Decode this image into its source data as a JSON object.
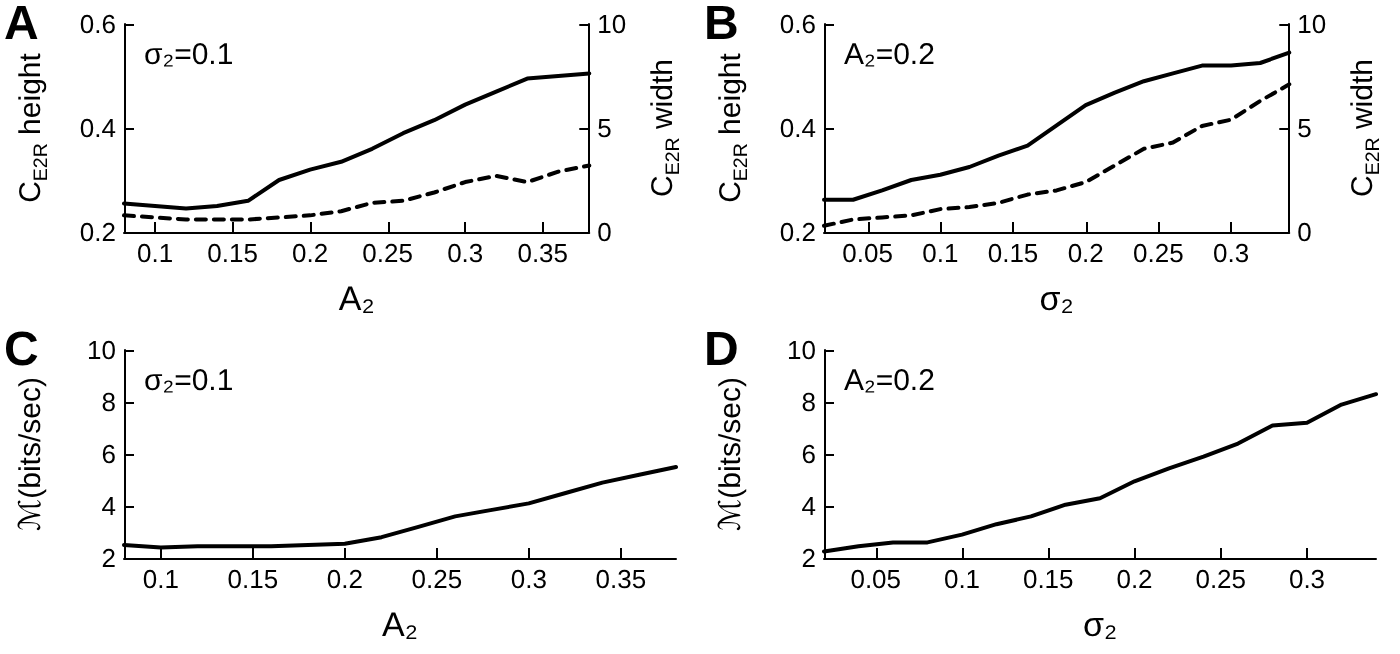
{
  "chart_data": [
    {
      "type": "line",
      "xlabel": "A₂",
      "ylabel": "C$_{E2R}$ height",
      "y2label": "C$_{E2R}$ width",
      "annotations": [
        "A",
        "σ₂=0.1"
      ],
      "x": [
        0.08,
        0.1,
        0.12,
        0.14,
        0.16,
        0.18,
        0.2,
        0.22,
        0.24,
        0.26,
        0.28,
        0.3,
        0.32,
        0.34,
        0.36,
        0.38
      ],
      "series": [
        {
          "color": "#000000",
          "line_style": "solid",
          "values": [
            0.255,
            0.25,
            0.245,
            0.25,
            0.26,
            0.3,
            0.32,
            0.335,
            0.36,
            0.39,
            0.415,
            0.445,
            0.47,
            0.495,
            0.5,
            0.505
          ]
        },
        {
          "color": "#000000",
          "line_style": "dashed",
          "axis": "y2",
          "values": [
            0.8,
            0.7,
            0.6,
            0.6,
            0.6,
            0.7,
            0.8,
            1.0,
            1.4,
            1.5,
            1.9,
            2.4,
            2.7,
            2.4,
            2.9,
            3.2
          ]
        }
      ],
      "xlim": [
        0.08,
        0.38
      ],
      "xticks": [
        0.1,
        0.15,
        0.2,
        0.25,
        0.3,
        0.35
      ],
      "ylim": [
        0.2,
        0.6
      ],
      "yticks": [
        0.2,
        0.4,
        0.6
      ],
      "y2lim": [
        0,
        10
      ],
      "y2ticks": [
        0,
        5,
        10
      ],
      "grid": false,
      "marker": "none"
    },
    {
      "type": "line",
      "xlabel": "σ₂",
      "ylabel": "C$_{E2R}$ height",
      "y2label": "C$_{E2R}$ width",
      "annotations": [
        "B",
        "A₂=0.2"
      ],
      "x": [
        0.02,
        0.04,
        0.06,
        0.08,
        0.1,
        0.12,
        0.14,
        0.16,
        0.18,
        0.2,
        0.22,
        0.24,
        0.26,
        0.28,
        0.3,
        0.32,
        0.34
      ],
      "series": [
        {
          "color": "#000000",
          "line_style": "solid",
          "values": [
            0.262,
            0.262,
            0.28,
            0.3,
            0.31,
            0.325,
            0.347,
            0.366,
            0.405,
            0.444,
            0.468,
            0.49,
            0.505,
            0.52,
            0.52,
            0.525,
            0.545
          ]
        },
        {
          "color": "#000000",
          "line_style": "dashed",
          "axis": "y2",
          "values": [
            0.3,
            0.6,
            0.7,
            0.8,
            1.1,
            1.2,
            1.4,
            1.8,
            2.0,
            2.4,
            3.2,
            4.0,
            4.3,
            5.1,
            5.4,
            6.3,
            7.1
          ]
        }
      ],
      "xlim": [
        0.02,
        0.34
      ],
      "xticks": [
        0.05,
        0.1,
        0.15,
        0.2,
        0.25,
        0.3
      ],
      "ylim": [
        0.2,
        0.6
      ],
      "yticks": [
        0.2,
        0.4,
        0.6
      ],
      "y2lim": [
        0,
        10
      ],
      "y2ticks": [
        0,
        5,
        10
      ],
      "grid": false,
      "marker": "none"
    },
    {
      "type": "line",
      "xlabel": "A₂",
      "ylabel": "ℳ(bits/sec)",
      "annotations": [
        "C",
        "σ₂=0.1"
      ],
      "x": [
        0.08,
        0.1,
        0.12,
        0.14,
        0.16,
        0.18,
        0.2,
        0.22,
        0.24,
        0.26,
        0.28,
        0.3,
        0.32,
        0.34,
        0.36,
        0.38
      ],
      "series": [
        {
          "color": "#000000",
          "line_style": "solid",
          "values": [
            2.5,
            2.4,
            2.45,
            2.45,
            2.45,
            2.5,
            2.55,
            2.8,
            3.2,
            3.6,
            3.85,
            4.1,
            4.5,
            4.9,
            5.2,
            5.5
          ]
        }
      ],
      "xlim": [
        0.08,
        0.38
      ],
      "xticks": [
        0.1,
        0.15,
        0.2,
        0.25,
        0.3,
        0.35
      ],
      "ylim": [
        2,
        10
      ],
      "yticks": [
        2,
        4,
        6,
        8,
        10
      ],
      "grid": false,
      "marker": "none"
    },
    {
      "type": "line",
      "xlabel": "σ₂",
      "ylabel": "ℳ(bits/sec)",
      "annotations": [
        "D",
        "A₂=0.2"
      ],
      "x": [
        0.02,
        0.04,
        0.06,
        0.08,
        0.1,
        0.12,
        0.14,
        0.16,
        0.18,
        0.2,
        0.22,
        0.24,
        0.26,
        0.28,
        0.3,
        0.32,
        0.34
      ],
      "series": [
        {
          "color": "#000000",
          "line_style": "solid",
          "values": [
            2.25,
            2.45,
            2.6,
            2.6,
            2.9,
            3.3,
            3.6,
            4.05,
            4.3,
            4.95,
            5.45,
            5.9,
            6.4,
            7.1,
            7.2,
            7.9,
            8.3
          ]
        }
      ],
      "xlim": [
        0.02,
        0.34
      ],
      "xticks": [
        0.05,
        0.1,
        0.15,
        0.2,
        0.25,
        0.3
      ],
      "ylim": [
        2,
        10
      ],
      "yticks": [
        2,
        4,
        6,
        8,
        10
      ],
      "grid": false,
      "marker": "none"
    }
  ]
}
